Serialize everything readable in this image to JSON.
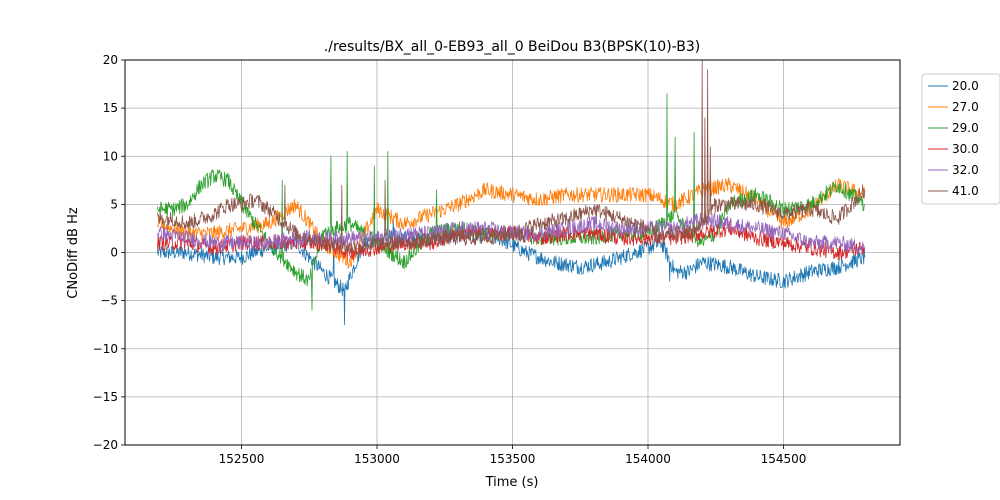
{
  "chart_data": {
    "type": "line",
    "title": "./results/BX_all_0-EB93_all_0 BeiDou B3(BPSK(10)-B3)",
    "xlabel": "Time (s)",
    "ylabel": "CNoDiff dB Hz",
    "xlim": [
      152070,
      154930
    ],
    "ylim": [
      -20,
      20
    ],
    "xticks": [
      152500,
      153000,
      153500,
      154000,
      154500
    ],
    "yticks": [
      -20,
      -15,
      -10,
      -5,
      0,
      5,
      10,
      15,
      20
    ],
    "grid": true,
    "legend_position": "outside-right-top",
    "series": [
      {
        "name": "20.0",
        "color": "#1f77b4",
        "x": [
          152190,
          152300,
          152400,
          152500,
          152600,
          152700,
          152800,
          152880,
          152950,
          153050,
          153150,
          153250,
          153350,
          153450,
          153550,
          153650,
          153750,
          153850,
          153950,
          154050,
          154100,
          154150,
          154200,
          154300,
          154400,
          154500,
          154600,
          154700,
          154800
        ],
        "y": [
          0.0,
          0.0,
          -0.5,
          -0.5,
          0.5,
          1.0,
          -2.0,
          -4.0,
          1.0,
          1.5,
          1.5,
          1.5,
          2.0,
          1.5,
          0.0,
          -1.0,
          -1.5,
          -1.0,
          0.0,
          1.0,
          -2.0,
          -2.0,
          -1.0,
          -1.5,
          -2.5,
          -3.0,
          -2.0,
          -1.5,
          -0.5
        ],
        "spikes": [
          [
            152880,
            -7.5
          ],
          [
            152840,
            1.5
          ],
          [
            153060,
            3.5
          ],
          [
            154080,
            -3.0
          ]
        ]
      },
      {
        "name": "27.0",
        "color": "#ff7f0e",
        "x": [
          152190,
          152300,
          152400,
          152500,
          152600,
          152700,
          152800,
          152900,
          153000,
          153100,
          153200,
          153300,
          153400,
          153500,
          153600,
          153700,
          153800,
          153900,
          154000,
          154050,
          154100,
          154200,
          154300,
          154400,
          154500,
          154600,
          154700,
          154800
        ],
        "y": [
          3.0,
          2.0,
          2.0,
          2.5,
          3.0,
          5.0,
          1.0,
          -1.0,
          4.5,
          3.0,
          4.0,
          5.0,
          6.5,
          6.0,
          5.5,
          6.0,
          6.0,
          6.0,
          6.0,
          5.5,
          5.0,
          6.5,
          7.0,
          5.5,
          3.0,
          4.5,
          7.0,
          6.0
        ]
      },
      {
        "name": "29.0",
        "color": "#2ca02c",
        "x": [
          152190,
          152250,
          152300,
          152350,
          152400,
          152450,
          152500,
          152600,
          152700,
          152750,
          152800,
          152900,
          153000,
          153100,
          153200,
          153300,
          153400,
          153500,
          153600,
          153700,
          153800,
          153900,
          154000,
          154100,
          154150,
          154200,
          154250,
          154300,
          154400,
          154500,
          154600,
          154700,
          154800
        ],
        "y": [
          4.5,
          4.5,
          5.0,
          7.0,
          8.0,
          7.5,
          5.0,
          1.0,
          -2.0,
          -3.0,
          2.0,
          3.0,
          1.0,
          -1.0,
          2.0,
          2.5,
          2.0,
          2.0,
          1.5,
          1.5,
          1.5,
          2.0,
          2.0,
          4.0,
          2.0,
          1.0,
          2.0,
          5.0,
          6.0,
          4.5,
          5.0,
          7.0,
          5.0
        ],
        "spikes": [
          [
            152760,
            -6.0
          ],
          [
            152830,
            10.0
          ],
          [
            152890,
            10.5
          ],
          [
            152990,
            9.0
          ],
          [
            153040,
            10.5
          ],
          [
            154070,
            16.5
          ],
          [
            154100,
            12.0
          ],
          [
            154170,
            12.5
          ],
          [
            153220,
            6.5
          ],
          [
            152500,
            6.0
          ],
          [
            152650,
            7.5
          ]
        ]
      },
      {
        "name": "30.0",
        "color": "#d62728",
        "x": [
          152190,
          152300,
          152400,
          152500,
          152600,
          152700,
          152800,
          152900,
          153000,
          153100,
          153200,
          153300,
          153400,
          153500,
          153600,
          153700,
          153800,
          153900,
          154000,
          154100,
          154200,
          154300,
          154400,
          154500,
          154600,
          154700,
          154800
        ],
        "y": [
          1.0,
          1.0,
          0.5,
          1.0,
          1.0,
          1.0,
          1.0,
          0.0,
          0.5,
          1.0,
          1.0,
          2.0,
          2.0,
          2.0,
          1.5,
          2.0,
          2.0,
          1.5,
          1.5,
          1.5,
          2.0,
          2.5,
          1.5,
          1.0,
          0.5,
          0.0,
          0.5
        ]
      },
      {
        "name": "32.0",
        "color": "#9467bd",
        "x": [
          152190,
          152300,
          152400,
          152500,
          152600,
          152700,
          152800,
          152900,
          153000,
          153100,
          153200,
          153300,
          153400,
          153500,
          153600,
          153700,
          153800,
          153900,
          154000,
          154100,
          154200,
          154300,
          154400,
          154500,
          154600,
          154700,
          154800
        ],
        "y": [
          2.0,
          1.5,
          1.0,
          1.0,
          1.0,
          1.5,
          1.5,
          1.5,
          1.5,
          2.0,
          2.0,
          2.5,
          2.5,
          2.0,
          2.0,
          2.5,
          3.0,
          2.5,
          2.5,
          2.5,
          3.5,
          3.0,
          2.5,
          2.0,
          1.0,
          1.0,
          0.5
        ]
      },
      {
        "name": "41.0",
        "color": "#8c564b",
        "x": [
          152190,
          152250,
          152300,
          152400,
          152450,
          152500,
          152550,
          152600,
          152700,
          152800,
          152900,
          153000,
          153100,
          153200,
          153300,
          153400,
          153500,
          153600,
          153700,
          153800,
          153900,
          154000,
          154050,
          154100,
          154150,
          154200,
          154250,
          154300,
          154400,
          154500,
          154600,
          154700,
          154800
        ],
        "y": [
          3.5,
          3.5,
          3.0,
          4.0,
          5.0,
          5.0,
          5.5,
          4.5,
          2.0,
          1.0,
          0.5,
          1.0,
          1.0,
          1.5,
          1.5,
          1.5,
          2.0,
          3.0,
          3.5,
          4.5,
          3.5,
          2.5,
          1.5,
          2.0,
          2.0,
          3.0,
          5.0,
          5.0,
          5.0,
          4.0,
          4.5,
          3.5,
          6.5
        ],
        "spikes": [
          [
            154200,
            20.0
          ],
          [
            154220,
            19.0
          ],
          [
            154230,
            11.0
          ],
          [
            154210,
            14.0
          ],
          [
            152660,
            7.0
          ],
          [
            152870,
            7.0
          ],
          [
            153030,
            7.5
          ]
        ]
      }
    ]
  }
}
